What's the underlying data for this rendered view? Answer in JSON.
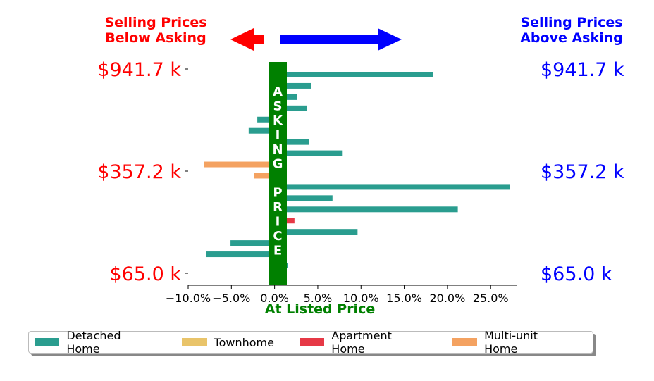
{
  "chart_data": {
    "type": "bar",
    "orientation": "horizontal",
    "header_left": [
      "Selling Prices",
      "Below Asking"
    ],
    "header_right": [
      "Selling Prices",
      "Above Asking"
    ],
    "center_band_text": [
      "A",
      "S",
      "K",
      "I",
      "N",
      "G",
      "",
      "P",
      "R",
      "I",
      "C",
      "E"
    ],
    "xlabel": "At Listed Price",
    "xlim": [
      -10,
      28
    ],
    "x_ticks": [
      -10,
      -5,
      0,
      5,
      10,
      15,
      20,
      25
    ],
    "x_tick_labels": [
      "−10.0%",
      "−5.0%",
      "0.0%",
      "5.0%",
      "10.0%",
      "15.0%",
      "20.0%",
      "25.0%"
    ],
    "price_labels": [
      "$941.7 k",
      "$357.2 k",
      "$65.0 k"
    ],
    "legend_placement": "bottom",
    "series": [
      {
        "name": "Detached Home",
        "color": "#2a9d8f"
      },
      {
        "name": "Townhome",
        "color": "#e9c46a"
      },
      {
        "name": "Apartment Home",
        "color": "#e63946"
      },
      {
        "name": "Multi-unit Home",
        "color": "#f4a261"
      }
    ],
    "bars": [
      {
        "series": 0,
        "value": 18.3
      },
      {
        "series": 0,
        "value": 4.2
      },
      {
        "series": 0,
        "value": 2.6
      },
      {
        "series": 0,
        "value": 3.7
      },
      {
        "series": 0,
        "value": -2.0
      },
      {
        "series": 0,
        "value": -3.0
      },
      {
        "series": 0,
        "value": 4.0
      },
      {
        "series": 0,
        "value": 7.8
      },
      {
        "series": 3,
        "value": -8.2
      },
      {
        "series": 3,
        "value": -2.4
      },
      {
        "series": 0,
        "value": 27.2
      },
      {
        "series": 0,
        "value": 6.7
      },
      {
        "series": 0,
        "value": 21.2
      },
      {
        "series": 2,
        "value": 2.3
      },
      {
        "series": 0,
        "value": 9.6
      },
      {
        "series": 0,
        "value": -5.1
      },
      {
        "series": 0,
        "value": -7.9
      },
      {
        "series": 0,
        "value": 1.5
      }
    ]
  },
  "colors": {
    "below": "#ff0000",
    "above": "#0000ff",
    "asking_band": "#008000"
  }
}
